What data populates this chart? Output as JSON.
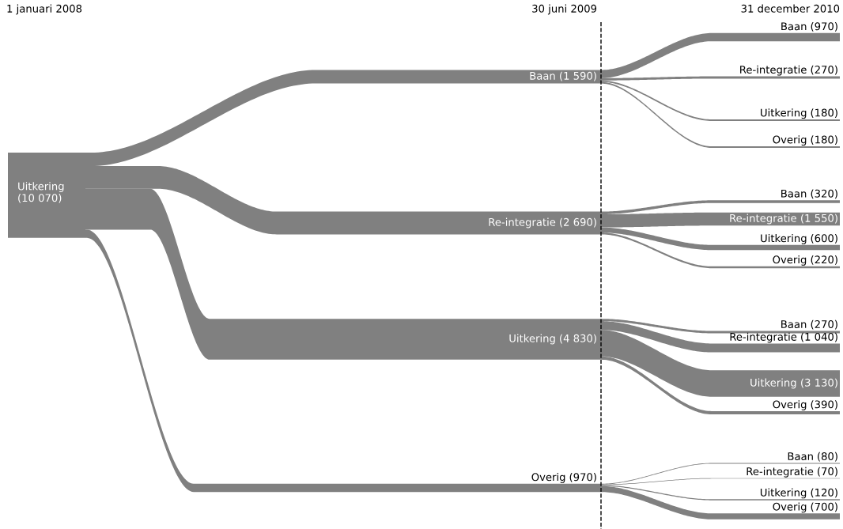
{
  "chart_data": {
    "type": "other",
    "categories": [
      "Baan",
      "Re-integratie",
      "Uitkering",
      "Overig"
    ],
    "values": [
      1590,
      2690,
      4830,
      970
    ],
    "value_labels": [
      "(1 590)",
      "(2 690)",
      "(4 830)",
      "(970)"
    ],
    "series": [
      {
        "color": "#808080",
        "values": [
          970,
          270,
          180,
          180
        ],
        "value_labels": [
          "(970)",
          "(270)",
          "(180)",
          "(180)"
        ]
      },
      {
        "color": "#808080",
        "values": [
          320,
          1550,
          600,
          220
        ],
        "value_labels": [
          "(320)",
          "(1 550)",
          "(600)",
          "(220)"
        ]
      },
      {
        "color": "#808080",
        "values": [
          270,
          1040,
          3130,
          390
        ],
        "value_labels": [
          "(270)",
          "(1 040)",
          "(3 130)",
          "(390)"
        ]
      },
      {
        "color": "#808080",
        "values": [
          80,
          70,
          120,
          700
        ],
        "value_labels": [
          "(80)",
          "(70)",
          "(120)",
          "(700)"
        ]
      }
    ],
    "ref_lines": [
      {
        "axis": "x",
        "label": "30 juni 2009",
        "line_style": "dashed",
        "color": "#000000"
      }
    ],
    "annotations": [
      "1 januari 2008",
      "31 december 2010",
      "Uitkering\n(10 070)"
    ]
  }
}
